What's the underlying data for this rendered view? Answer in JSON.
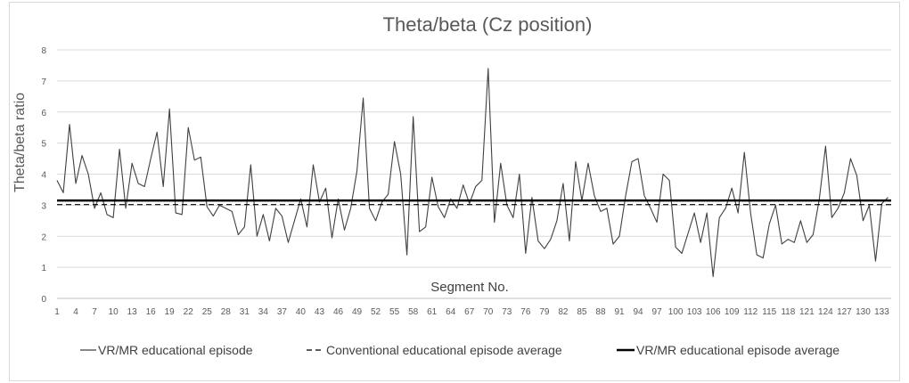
{
  "chart_data": {
    "type": "line",
    "title": "Theta/beta (Cz position)",
    "ylabel": "Theta/beta ratio",
    "xlabel": "Segment No.",
    "ylim": [
      0,
      8
    ],
    "yticks": [
      "0",
      "1",
      "2",
      "3",
      "4",
      "5",
      "6",
      "7",
      "8"
    ],
    "xticks": [
      "1",
      "4",
      "7",
      "10",
      "13",
      "16",
      "19",
      "22",
      "25",
      "28",
      "31",
      "34",
      "37",
      "40",
      "43",
      "46",
      "49",
      "52",
      "55",
      "58",
      "61",
      "64",
      "67",
      "70",
      "73",
      "76",
      "79",
      "82",
      "85",
      "88",
      "91",
      "94",
      "97",
      "100",
      "103",
      "106",
      "109",
      "112",
      "115",
      "118",
      "121",
      "124",
      "127",
      "130",
      "133"
    ],
    "grid": "horizontal",
    "legend_position": "bottom",
    "colors": {
      "series": "#404040",
      "grid": "#d9d9d9",
      "axis": "#bfbfbf"
    },
    "series": [
      {
        "name": "VR/MR educational episode",
        "style": "solid-thin",
        "x": [
          1,
          2,
          3,
          4,
          5,
          6,
          7,
          8,
          9,
          10,
          11,
          12,
          13,
          14,
          15,
          16,
          17,
          18,
          19,
          20,
          21,
          22,
          23,
          24,
          25,
          26,
          27,
          28,
          29,
          30,
          31,
          32,
          33,
          34,
          35,
          36,
          37,
          38,
          39,
          40,
          41,
          42,
          43,
          44,
          45,
          46,
          47,
          48,
          49,
          50,
          51,
          52,
          53,
          54,
          55,
          56,
          57,
          58,
          59,
          60,
          61,
          62,
          63,
          64,
          65,
          66,
          67,
          68,
          69,
          70,
          71,
          72,
          73,
          74,
          75,
          76,
          77,
          78,
          79,
          80,
          81,
          82,
          83,
          84,
          85,
          86,
          87,
          88,
          89,
          90,
          91,
          92,
          93,
          94,
          95,
          96,
          97,
          98,
          99,
          100,
          101,
          102,
          103,
          104,
          105,
          106,
          107,
          108,
          109,
          110,
          111,
          112,
          113,
          114,
          115,
          116,
          117,
          118,
          119,
          120,
          121,
          122,
          123,
          124,
          125,
          126,
          127,
          128,
          129,
          130,
          131,
          132,
          133,
          134
        ],
        "values": [
          3.8,
          3.4,
          5.6,
          3.7,
          4.6,
          4.0,
          2.9,
          3.4,
          2.7,
          2.6,
          4.8,
          2.9,
          4.35,
          3.7,
          3.6,
          4.5,
          5.35,
          3.6,
          6.1,
          2.75,
          2.7,
          5.5,
          4.45,
          4.55,
          2.95,
          2.65,
          3.0,
          2.9,
          2.8,
          2.05,
          2.3,
          4.3,
          2.0,
          2.7,
          1.85,
          2.9,
          2.65,
          1.8,
          2.5,
          3.2,
          2.3,
          4.3,
          3.1,
          3.55,
          1.95,
          3.2,
          2.2,
          2.9,
          4.1,
          6.45,
          2.9,
          2.5,
          3.1,
          3.35,
          5.05,
          4.0,
          1.4,
          5.85,
          2.15,
          2.3,
          3.9,
          2.95,
          2.6,
          3.2,
          2.9,
          3.65,
          3.05,
          3.6,
          3.8,
          7.4,
          2.45,
          4.35,
          3.0,
          2.6,
          4.0,
          1.45,
          3.25,
          1.85,
          1.6,
          1.9,
          2.5,
          3.7,
          1.85,
          4.4,
          3.15,
          4.35,
          3.3,
          2.8,
          2.9,
          1.75,
          2.0,
          3.3,
          4.4,
          4.5,
          3.3,
          2.9,
          2.45,
          4.0,
          3.8,
          1.65,
          1.45,
          2.1,
          2.75,
          1.8,
          2.75,
          0.7,
          2.6,
          2.9,
          3.55,
          2.75,
          4.7,
          2.75,
          1.4,
          1.3,
          2.4,
          3.0,
          1.75,
          1.9,
          1.8,
          2.5,
          1.8,
          2.05,
          3.2,
          4.9,
          2.6,
          2.9,
          3.4,
          4.5,
          3.95,
          2.5,
          3.0,
          1.2,
          3.05,
          3.25
        ]
      },
      {
        "name": "Conventional educational episode average",
        "style": "dashed",
        "value": 3.02
      },
      {
        "name": "VR/MR educational episode average",
        "style": "solid-thick",
        "value": 3.15
      }
    ]
  }
}
